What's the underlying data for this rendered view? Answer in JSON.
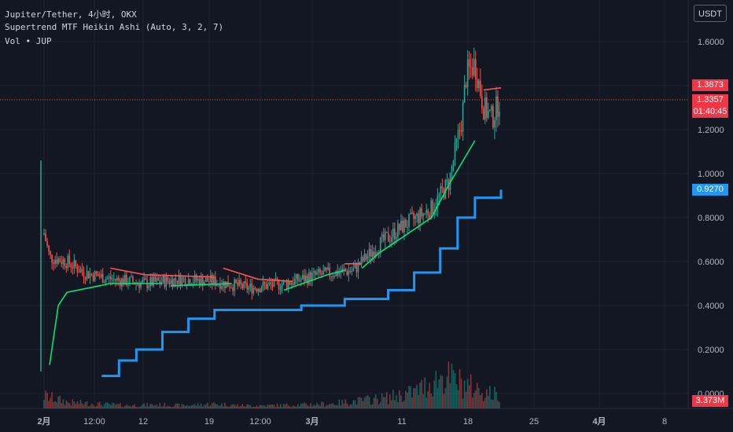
{
  "legend": {
    "symbol_line": "Jupiter/Tether, 4小时, OKX",
    "indicator_line": "Supertrend MTF Heikin Ashi (Auto, 3, 2, 7)",
    "volume_line": "Vol • JUP"
  },
  "unit_button": "USDT",
  "price_tags": {
    "upper_band": "1.3873",
    "last_price": "1.3357",
    "countdown": "01:40:45",
    "mtf_band": "0.9270",
    "volume": "3.373M"
  },
  "colors": {
    "background": "#131722",
    "up": "#26a69a",
    "down": "#ef5350",
    "supertrend_up": "#00e676",
    "supertrend_down": "#ff5252",
    "mtf_line": "#2196f3"
  },
  "chart_data": {
    "type": "candlestick",
    "y_axis": {
      "ticks": [
        "1.6000",
        "1.4000",
        "1.2000",
        "1.0000",
        "0.8000",
        "0.6000",
        "0.4000",
        "0.2000",
        "0.0000"
      ],
      "range": [
        0.0,
        1.7
      ]
    },
    "x_axis": {
      "ticks": [
        "2月",
        "12:00",
        "12",
        "19",
        "12:00",
        "3月",
        "11",
        "18",
        "25",
        "4月",
        "8"
      ]
    },
    "last_price": 1.3357,
    "price_series": [
      {
        "t": 0,
        "v": 0.1
      },
      {
        "t": 0.3,
        "v": 0.74
      },
      {
        "t": 1,
        "v": 0.62
      },
      {
        "t": 3,
        "v": 0.6
      },
      {
        "t": 5,
        "v": 0.55
      },
      {
        "t": 8,
        "v": 0.52
      },
      {
        "t": 12,
        "v": 0.5
      },
      {
        "t": 16,
        "v": 0.52
      },
      {
        "t": 20,
        "v": 0.51
      },
      {
        "t": 24,
        "v": 0.48
      },
      {
        "t": 28,
        "v": 0.5
      },
      {
        "t": 32,
        "v": 0.54
      },
      {
        "t": 36,
        "v": 0.56
      },
      {
        "t": 39,
        "v": 0.68
      },
      {
        "t": 42,
        "v": 0.77
      },
      {
        "t": 45,
        "v": 0.84
      },
      {
        "t": 47,
        "v": 0.96
      },
      {
        "t": 48.5,
        "v": 1.25
      },
      {
        "t": 49,
        "v": 1.45
      },
      {
        "t": 50,
        "v": 1.5
      },
      {
        "t": 51,
        "v": 1.3
      },
      {
        "t": 52,
        "v": 1.25
      },
      {
        "t": 53,
        "v": 1.35
      }
    ],
    "volume_series": [
      0.9,
      0.4,
      0.3,
      0.2,
      0.25,
      0.2,
      0.3,
      0.2,
      0.2,
      0.25,
      0.3,
      0.5,
      0.7,
      1.1,
      2.2,
      1.4,
      0.8
    ],
    "supertrend_segments": [
      {
        "trend": "up",
        "points": [
          {
            "t": 1,
            "v": 0.13
          },
          {
            "t": 2,
            "v": 0.4
          },
          {
            "t": 3,
            "v": 0.46
          },
          {
            "t": 8,
            "v": 0.5
          },
          {
            "t": 14,
            "v": 0.5
          }
        ]
      },
      {
        "trend": "down",
        "points": [
          {
            "t": 8,
            "v": 0.57
          },
          {
            "t": 12,
            "v": 0.54
          },
          {
            "t": 20,
            "v": 0.53
          }
        ]
      },
      {
        "trend": "up",
        "points": [
          {
            "t": 15,
            "v": 0.49
          },
          {
            "t": 22,
            "v": 0.5
          }
        ]
      },
      {
        "trend": "down",
        "points": [
          {
            "t": 21,
            "v": 0.57
          },
          {
            "t": 25,
            "v": 0.52
          },
          {
            "t": 29,
            "v": 0.51
          }
        ]
      },
      {
        "trend": "up",
        "points": [
          {
            "t": 28,
            "v": 0.47
          },
          {
            "t": 33,
            "v": 0.54
          },
          {
            "t": 35,
            "v": 0.56
          }
        ]
      },
      {
        "trend": "down",
        "points": [
          {
            "t": 35,
            "v": 0.59
          },
          {
            "t": 37,
            "v": 0.59
          }
        ]
      },
      {
        "trend": "up",
        "points": [
          {
            "t": 37,
            "v": 0.57
          },
          {
            "t": 39,
            "v": 0.64
          },
          {
            "t": 42,
            "v": 0.72
          },
          {
            "t": 45,
            "v": 0.8
          },
          {
            "t": 47,
            "v": 0.95
          },
          {
            "t": 48.5,
            "v": 1.05
          },
          {
            "t": 50,
            "v": 1.15
          }
        ]
      },
      {
        "trend": "down",
        "points": [
          {
            "t": 51,
            "v": 1.38
          },
          {
            "t": 53,
            "v": 1.39
          }
        ]
      }
    ],
    "mtf_line": [
      {
        "t": 7,
        "v": 0.08
      },
      {
        "t": 9,
        "v": 0.15
      },
      {
        "t": 11,
        "v": 0.2
      },
      {
        "t": 14,
        "v": 0.28
      },
      {
        "t": 17,
        "v": 0.34
      },
      {
        "t": 20,
        "v": 0.38
      },
      {
        "t": 30,
        "v": 0.4
      },
      {
        "t": 35,
        "v": 0.43
      },
      {
        "t": 40,
        "v": 0.47
      },
      {
        "t": 43,
        "v": 0.55
      },
      {
        "t": 46,
        "v": 0.66
      },
      {
        "t": 48,
        "v": 0.8
      },
      {
        "t": 50,
        "v": 0.89
      },
      {
        "t": 53,
        "v": 0.927
      }
    ]
  }
}
